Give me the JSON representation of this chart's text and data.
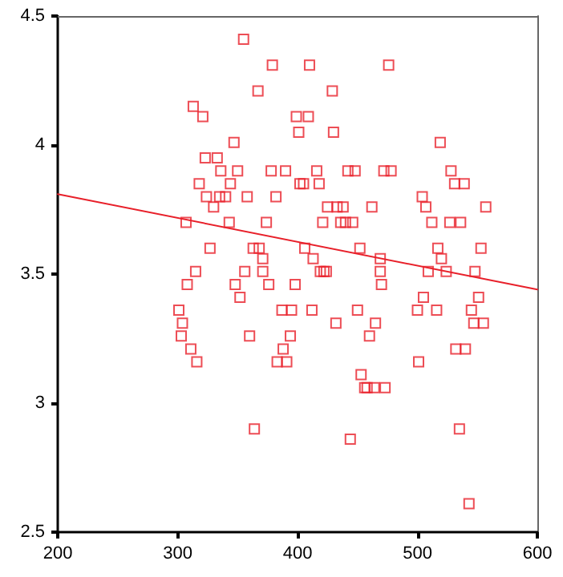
{
  "chart_data": {
    "type": "scatter",
    "xlim": [
      200,
      600
    ],
    "xticks": [
      200,
      300,
      400,
      500,
      600
    ],
    "ylim": [
      2.5,
      4.5
    ],
    "yticks": [
      2.5,
      3,
      3.5,
      4,
      4.5
    ],
    "grid": false,
    "marker": "square",
    "series": [
      {
        "type": "scatter",
        "color": "#e8202a",
        "x": [
          355,
          379,
          367,
          313,
          321,
          399,
          401,
          347,
          323,
          333,
          336,
          350,
          378,
          390,
          318,
          344,
          402,
          324,
          335,
          340,
          358,
          382,
          330,
          307,
          343,
          374,
          327,
          363,
          368,
          371,
          315,
          356,
          371,
          410,
          476,
          429,
          409,
          430,
          519,
          416,
          442,
          448,
          472,
          478,
          528,
          405,
          418,
          531,
          539,
          504,
          425,
          433,
          438,
          462,
          507,
          557,
          421,
          436,
          440,
          446,
          512,
          527,
          536,
          406,
          452,
          517,
          553,
          413,
          469,
          520,
          419,
          422,
          424,
          509,
          524,
          548,
          308,
          348,
          376,
          398,
          352,
          301,
          387,
          395,
          304,
          303,
          360,
          394,
          311,
          388,
          316,
          383,
          391,
          364,
          469,
          470,
          505,
          551,
          412,
          450,
          500,
          516,
          545,
          432,
          465,
          547,
          555,
          460,
          532,
          540,
          501,
          453,
          456,
          458,
          464,
          473,
          535,
          444,
          543
        ],
        "values": [
          4.41,
          4.31,
          4.21,
          4.15,
          4.11,
          4.11,
          4.05,
          4.01,
          3.95,
          3.95,
          3.9,
          3.9,
          3.9,
          3.9,
          3.85,
          3.85,
          3.85,
          3.8,
          3.8,
          3.8,
          3.8,
          3.8,
          3.76,
          3.7,
          3.7,
          3.7,
          3.6,
          3.6,
          3.6,
          3.56,
          3.51,
          3.51,
          3.51,
          4.31,
          4.31,
          4.21,
          4.11,
          4.05,
          4.01,
          3.9,
          3.9,
          3.9,
          3.9,
          3.9,
          3.9,
          3.85,
          3.85,
          3.85,
          3.85,
          3.8,
          3.76,
          3.76,
          3.76,
          3.76,
          3.76,
          3.76,
          3.7,
          3.7,
          3.7,
          3.7,
          3.7,
          3.7,
          3.7,
          3.6,
          3.6,
          3.6,
          3.6,
          3.56,
          3.56,
          3.56,
          3.51,
          3.51,
          3.51,
          3.51,
          3.51,
          3.51,
          3.46,
          3.46,
          3.46,
          3.46,
          3.41,
          3.36,
          3.36,
          3.36,
          3.31,
          3.26,
          3.26,
          3.26,
          3.21,
          3.21,
          3.16,
          3.16,
          3.16,
          2.9,
          3.51,
          3.46,
          3.41,
          3.41,
          3.36,
          3.36,
          3.36,
          3.36,
          3.36,
          3.31,
          3.31,
          3.31,
          3.31,
          3.26,
          3.21,
          3.21,
          3.16,
          3.11,
          3.06,
          3.06,
          3.06,
          3.06,
          2.9,
          2.86,
          2.61
        ]
      },
      {
        "type": "line",
        "color": "#e8202a",
        "marker": "none",
        "x": [
          200,
          600
        ],
        "values": [
          3.81,
          3.44
        ]
      }
    ]
  }
}
